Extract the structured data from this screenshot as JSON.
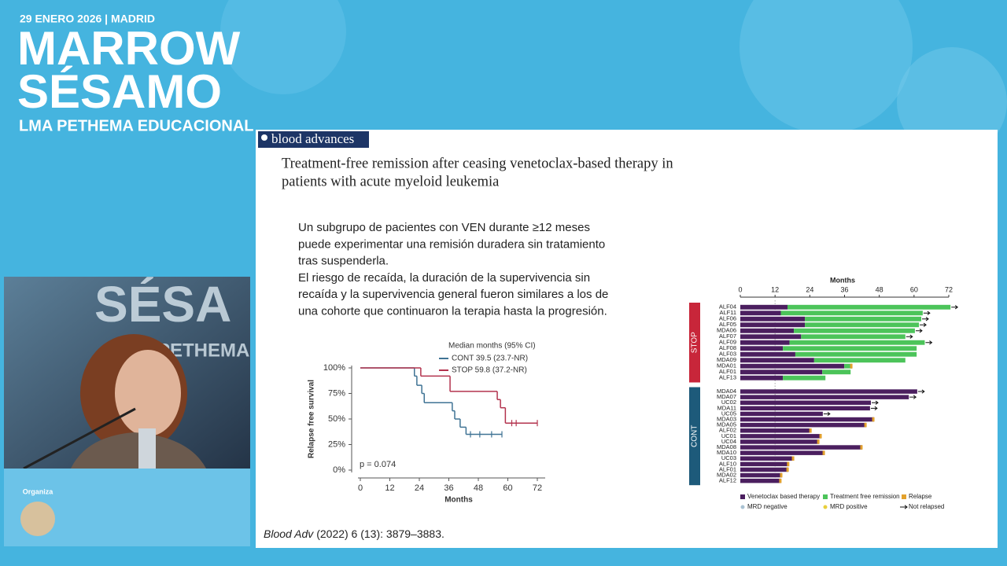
{
  "header": {
    "date": "29 ENERO 2026 | MADRID",
    "title_lines": [
      "MARROW",
      "SÉSAMO"
    ],
    "subtitle": "LMA PETHEMA EDUCACIONAL"
  },
  "video": {
    "backdrop_lines": [
      "SÉSA",
      "PETHEMA"
    ]
  },
  "sponsor": {
    "label": "Organiza"
  },
  "slide": {
    "journal": "blood advances",
    "title_lines": [
      "Treatment-free remission after ceasing venetoclax-based therapy in",
      "patients with acute myeloid leukemia"
    ],
    "paragraphs": [
      [
        "Un subgrupo de pacientes con VEN durante ≥12 meses",
        "puede experimentar una remisión duradera sin tratamiento",
        "tras suspenderla."
      ],
      [
        "El riesgo de recaída, la duración de la supervivencia sin",
        "recaída y la supervivencia general fueron similares a los de",
        "una cohorte que continuaron la terapia hasta la progresión."
      ]
    ],
    "citation": {
      "journal": "Blood Adv",
      "details": "(2022) 6 (13): 3879–3883."
    }
  },
  "chart_data": [
    {
      "type": "survival",
      "y_label": "Relapse free survival",
      "x_label": "Months",
      "legend_title": "Median months (95% CI)",
      "annotation": "p = 0.074",
      "xlim": [
        0,
        72
      ],
      "xticks": [
        0,
        12,
        24,
        36,
        48,
        60,
        72
      ],
      "ylim": [
        0,
        100
      ],
      "yticks": [
        {
          "value": 0,
          "label": "0%"
        },
        {
          "value": 25,
          "label": "25%"
        },
        {
          "value": 50,
          "label": "50%"
        },
        {
          "value": 75,
          "label": "75%"
        },
        {
          "value": 100,
          "label": "100%"
        }
      ],
      "series": [
        {
          "name": "CONT 39.5 (23.7-NR)",
          "color": "#3f7394",
          "x": [
            0,
            22,
            23,
            25,
            26,
            37.4,
            38.4,
            40.6,
            43
          ],
          "values": [
            100,
            92,
            83,
            75,
            66,
            58,
            50,
            42,
            35
          ],
          "censored": [
            44.8,
            48.6,
            53.4,
            57.6
          ]
        },
        {
          "name": "STOP 59.8 (37.2-NR)",
          "color": "#b3334e",
          "x": [
            0,
            24.6,
            36.5,
            55.7,
            57,
            59
          ],
          "values": [
            100,
            92,
            77,
            69,
            61,
            46
          ],
          "censored": [
            61.6,
            63.4,
            72
          ]
        }
      ]
    },
    {
      "type": "swimmer",
      "x_label": "Months",
      "xlim": [
        0,
        72
      ],
      "xticks": [
        0,
        12,
        24,
        36,
        48,
        60,
        72
      ],
      "reference_line": 12,
      "legend": [
        {
          "name": "Venetoclax based therapy",
          "color": "#4b1f5f"
        },
        {
          "name": "Treatment free remission",
          "color": "#4cc45a"
        },
        {
          "name": "Relapse",
          "color": "#e3a12c"
        },
        {
          "name": "MRD negative",
          "color": "#a9c2d2"
        },
        {
          "name": "MRD positive",
          "color": "#e8cf3c"
        },
        {
          "name": "Not relapsed",
          "color": "#111111"
        }
      ],
      "groups": [
        {
          "name": "STOP",
          "color": "#c8263a",
          "patients": [
            "ALF04",
            "ALF11",
            "ALF06",
            "ALF05",
            "MDA06",
            "ALF07",
            "ALF09",
            "ALF08",
            "ALF03",
            "MDA09",
            "MDA01",
            "ALF01",
            "ALF13"
          ],
          "therapy": [
            16.3,
            14,
            22.3,
            22.3,
            18.5,
            21,
            17,
            14.7,
            19,
            25.5,
            35.9,
            28.3,
            14.7
          ],
          "tfr": [
            56.3,
            49,
            40.2,
            39.4,
            41.8,
            36,
            46.7,
            46.2,
            41.9,
            31.5,
            2.7,
            9.8,
            14.7
          ],
          "relapse": [
            false,
            false,
            false,
            false,
            false,
            false,
            false,
            false,
            false,
            false,
            true,
            false,
            false
          ],
          "not_relapsed": [
            true,
            true,
            true,
            true,
            true,
            true,
            true,
            false,
            false,
            false,
            false,
            false,
            false
          ]
        },
        {
          "name": "CONT",
          "color": "#1d5a7a",
          "patients": [
            "MDA04",
            "MDA07",
            "UC02",
            "MDA11",
            "UC05",
            "MDA03",
            "MDA05",
            "ALF02",
            "UC01",
            "UC04",
            "MDA08",
            "MDA10",
            "UC03",
            "ALF10",
            "ALF01",
            "MDA02",
            "ALF12"
          ],
          "therapy": [
            61.1,
            58.2,
            45.1,
            44.8,
            28.5,
            46.2,
            43.5,
            24.5,
            28,
            27.2,
            42.1,
            29.1,
            18.5,
            16.8,
            16.6,
            14.4,
            14.1
          ],
          "tfr": [
            0,
            0,
            0,
            0,
            0,
            0,
            0,
            0,
            0,
            0,
            0,
            0,
            0,
            0,
            0,
            0,
            0
          ],
          "relapse": [
            false,
            false,
            false,
            false,
            false,
            true,
            true,
            true,
            true,
            true,
            true,
            true,
            true,
            true,
            true,
            true,
            true
          ],
          "not_relapsed": [
            true,
            true,
            true,
            true,
            true,
            false,
            false,
            false,
            false,
            false,
            false,
            false,
            false,
            false,
            false,
            false,
            false
          ]
        }
      ]
    }
  ]
}
